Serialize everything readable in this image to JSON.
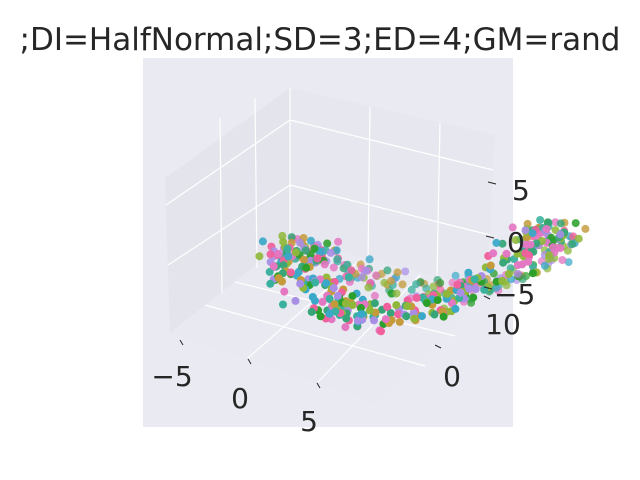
{
  "chart_data": {
    "type": "scatter",
    "title": ";DI=HalfNormal;SD=3;ED=4;GM=rand",
    "xlabel": "",
    "ylabel": "",
    "zlabel": "",
    "xlim": [
      -7,
      10
    ],
    "ylim": [
      -4,
      14
    ],
    "zlim": [
      -7,
      8
    ],
    "x_ticks": [
      "−5",
      "0",
      "5"
    ],
    "y_ticks": [
      "0",
      "10"
    ],
    "z_ticks": [
      "−5",
      "0",
      "5"
    ],
    "grid": true,
    "legend": "none",
    "palette": [
      "#e377c2",
      "#2ca02c",
      "#3ab09e",
      "#c49a3a",
      "#a98ee6",
      "#f0609c",
      "#3aa8c8",
      "#8fb83a",
      "#36a678"
    ],
    "point_count": 520
  },
  "colors": {
    "pane": "#eaeaf2",
    "grid": "#ffffff",
    "text": "#262626"
  }
}
